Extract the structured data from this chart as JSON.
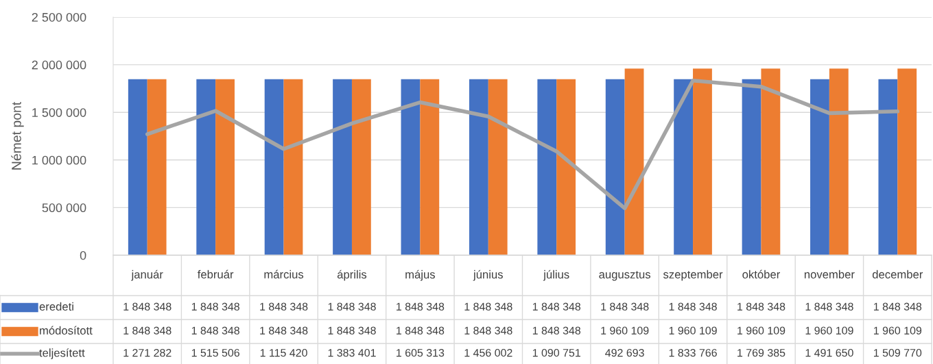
{
  "chart_data": {
    "type": "bar",
    "ylabel": "Német pont",
    "categories": [
      "január",
      "február",
      "március",
      "április",
      "május",
      "június",
      "július",
      "augusztus",
      "szeptember",
      "október",
      "november",
      "december"
    ],
    "ylim": [
      0,
      2500000
    ],
    "yticks": [
      {
        "value": 0,
        "label": "0"
      },
      {
        "value": 500000,
        "label": "500 000"
      },
      {
        "value": 1000000,
        "label": "1 000 000"
      },
      {
        "value": 1500000,
        "label": "1 500 000"
      },
      {
        "value": 2000000,
        "label": "2 000 000"
      },
      {
        "value": 2500000,
        "label": "2 500 000"
      }
    ],
    "grid": "y",
    "legend": "bottom left",
    "marker": "none",
    "line_style": "solid",
    "series": [
      {
        "name": "eredeti",
        "color": "#4472c4",
        "values": [
          1848348,
          1848348,
          1848348,
          1848348,
          1848348,
          1848348,
          1848348,
          1848348,
          1848348,
          1848348,
          1848348,
          1848348
        ],
        "value_labels": [
          "1 848 348",
          "1 848 348",
          "1 848 348",
          "1 848 348",
          "1 848 348",
          "1 848 348",
          "1 848 348",
          "1 848 348",
          "1 848 348",
          "1 848 348",
          "1 848 348",
          "1 848 348"
        ]
      },
      {
        "name": "módosított",
        "color": "#ed7d31",
        "values": [
          1848348,
          1848348,
          1848348,
          1848348,
          1848348,
          1848348,
          1848348,
          1960109,
          1960109,
          1960109,
          1960109,
          1960109
        ],
        "value_labels": [
          "1 848 348",
          "1 848 348",
          "1 848 348",
          "1 848 348",
          "1 848 348",
          "1 848 348",
          "1 848 348",
          "1 960 109",
          "1 960 109",
          "1 960 109",
          "1 960 109",
          "1 960 109"
        ]
      },
      {
        "name": "teljesített",
        "type": "line",
        "color": "#a5a5a5",
        "values": [
          1271282,
          1515506,
          1115420,
          1383401,
          1605313,
          1456002,
          1090751,
          492693,
          1833766,
          1769385,
          1491650,
          1509770
        ],
        "value_labels": [
          "1 271 282",
          "1 515 506",
          "1 115 420",
          "1 383 401",
          "1 605 313",
          "1 456 002",
          "1 090 751",
          "492 693",
          "1 833 766",
          "1 769 385",
          "1 491 650",
          "1 509 770"
        ]
      }
    ]
  }
}
